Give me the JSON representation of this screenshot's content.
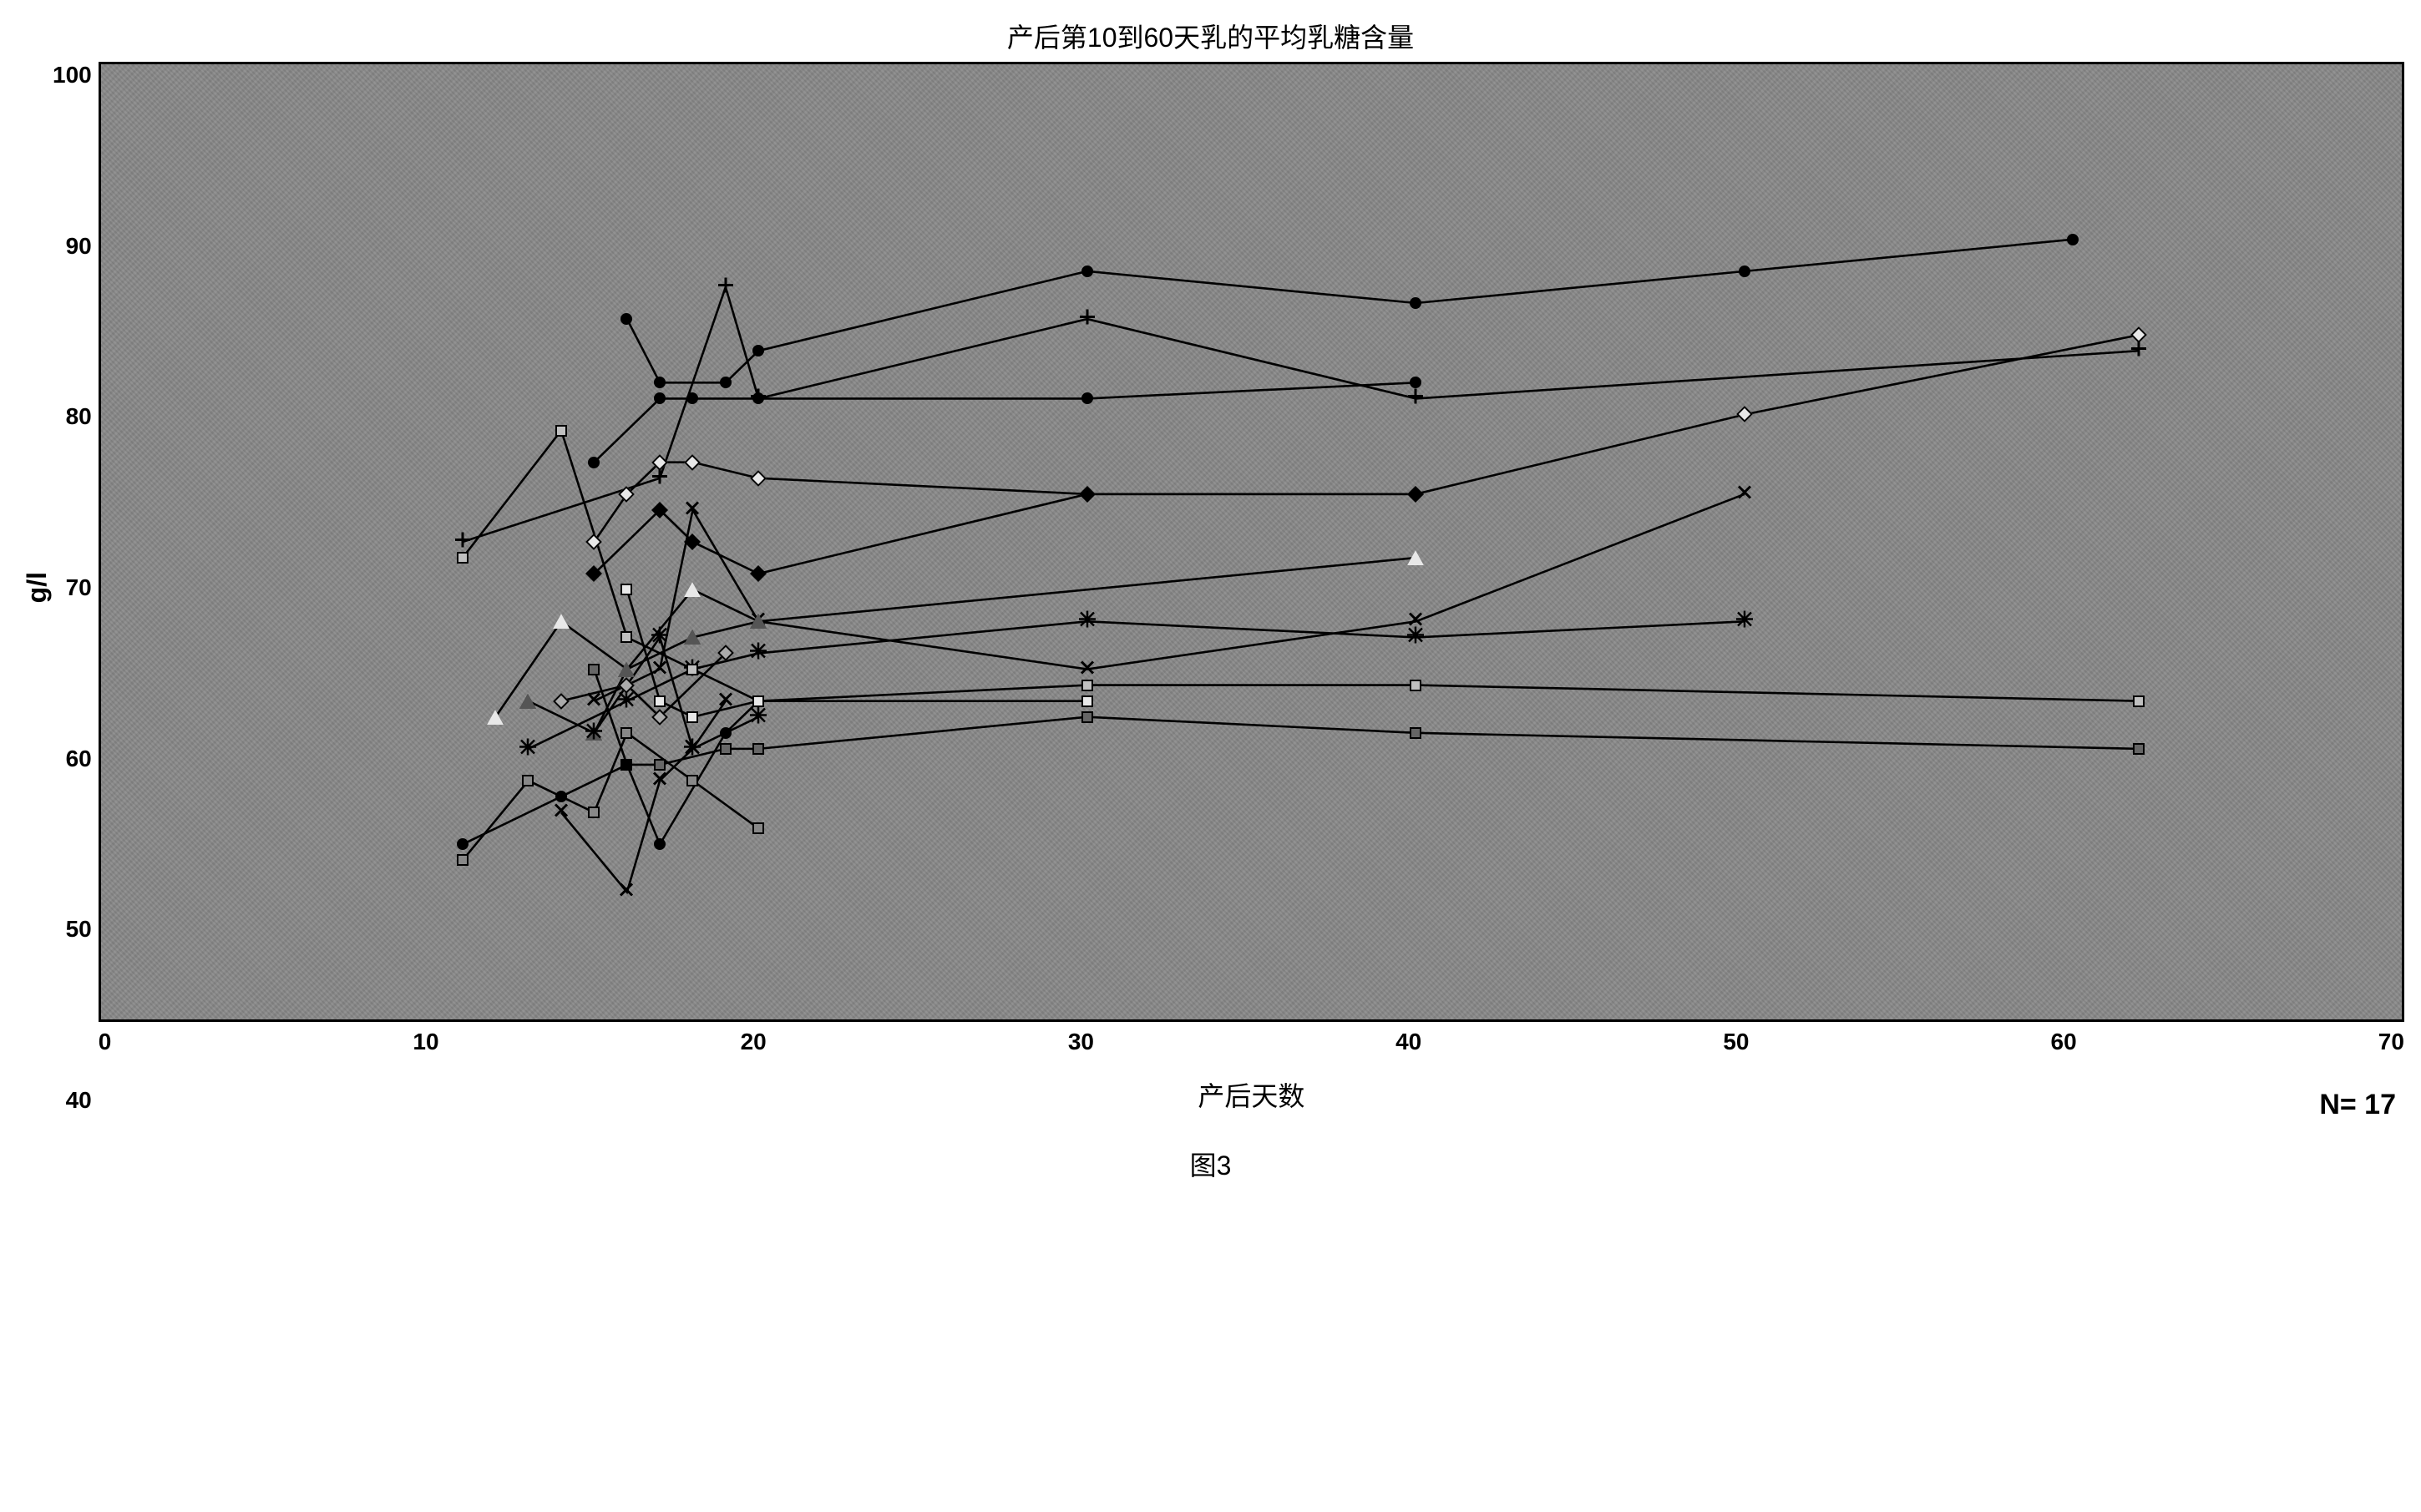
{
  "chart": {
    "type": "line",
    "title": "产后第10到60天乳的平均乳糖含量",
    "ylabel": "g/l",
    "xlabel": "产后天数",
    "n_label": "N= 17",
    "fig_label": "图3",
    "title_fontsize": 32,
    "label_fontsize": 32,
    "tick_fontsize": 28,
    "background_color": "#888888",
    "border_color": "#000000",
    "xlim": [
      0,
      70
    ],
    "ylim": [
      40,
      100
    ],
    "xticks": [
      0,
      10,
      20,
      30,
      40,
      50,
      60,
      70
    ],
    "yticks": [
      40,
      50,
      60,
      70,
      80,
      90,
      100
    ],
    "line_width": 3,
    "marker_size": 14,
    "series": [
      {
        "marker": "circle",
        "fill": "#000000",
        "stroke": "#000000",
        "points": [
          [
            16,
            84
          ],
          [
            17,
            80
          ],
          [
            19,
            80
          ],
          [
            20,
            82
          ],
          [
            30,
            87
          ],
          [
            40,
            85
          ],
          [
            50,
            87
          ],
          [
            60,
            89
          ]
        ]
      },
      {
        "marker": "circle",
        "fill": "#000000",
        "stroke": "#000000",
        "points": [
          [
            15,
            75
          ],
          [
            17,
            79
          ],
          [
            18,
            79
          ],
          [
            20,
            79
          ],
          [
            30,
            79
          ],
          [
            40,
            80
          ]
        ]
      },
      {
        "marker": "diamond",
        "fill": "#e8e8e8",
        "stroke": "#000000",
        "points": [
          [
            15,
            70
          ],
          [
            16,
            73
          ],
          [
            17,
            75
          ],
          [
            18,
            75
          ],
          [
            20,
            74
          ],
          [
            30,
            73
          ],
          [
            40,
            73
          ],
          [
            50,
            78
          ],
          [
            62,
            83
          ]
        ]
      },
      {
        "marker": "plus",
        "fill": "none",
        "stroke": "#000000",
        "points": [
          [
            11,
            70
          ],
          [
            17,
            74
          ],
          [
            19,
            86
          ],
          [
            20,
            79
          ],
          [
            30,
            84
          ],
          [
            40,
            79
          ],
          [
            62,
            82
          ]
        ]
      },
      {
        "marker": "diamond",
        "fill": "#000000",
        "stroke": "#000000",
        "points": [
          [
            15,
            68
          ],
          [
            17,
            72
          ],
          [
            18,
            70
          ],
          [
            20,
            68
          ],
          [
            30,
            73
          ],
          [
            40,
            73
          ]
        ]
      },
      {
        "marker": "x",
        "fill": "none",
        "stroke": "#000000",
        "points": [
          [
            15,
            60
          ],
          [
            17,
            62
          ],
          [
            18,
            72
          ],
          [
            20,
            65
          ],
          [
            30,
            62
          ],
          [
            40,
            65
          ],
          [
            50,
            73
          ]
        ]
      },
      {
        "marker": "triangle",
        "fill": "#e8e8e8",
        "stroke": "#000000",
        "points": [
          [
            12,
            59
          ],
          [
            14,
            65
          ],
          [
            16,
            62
          ],
          [
            18,
            67
          ],
          [
            20,
            65
          ],
          [
            40,
            69
          ]
        ]
      },
      {
        "marker": "asterisk",
        "fill": "none",
        "stroke": "#000000",
        "points": [
          [
            13,
            57
          ],
          [
            16,
            60
          ],
          [
            18,
            62
          ],
          [
            20,
            63
          ],
          [
            30,
            65
          ],
          [
            40,
            64
          ],
          [
            50,
            65
          ]
        ]
      },
      {
        "marker": "square",
        "fill": "#c0c0c0",
        "stroke": "#000000",
        "points": [
          [
            11,
            69
          ],
          [
            14,
            77
          ],
          [
            16,
            64
          ],
          [
            18,
            62
          ],
          [
            20,
            60
          ],
          [
            30,
            61
          ],
          [
            40,
            61
          ],
          [
            62,
            60
          ]
        ]
      },
      {
        "marker": "square",
        "fill": "#666666",
        "stroke": "#000000",
        "points": [
          [
            15,
            62
          ],
          [
            16,
            56
          ],
          [
            17,
            56
          ],
          [
            19,
            57
          ],
          [
            20,
            57
          ],
          [
            30,
            59
          ],
          [
            40,
            58
          ],
          [
            62,
            57
          ]
        ]
      },
      {
        "marker": "circle",
        "fill": "#000000",
        "stroke": "#000000",
        "points": [
          [
            11,
            51
          ],
          [
            14,
            54
          ],
          [
            16,
            56
          ],
          [
            17,
            51
          ],
          [
            19,
            58
          ],
          [
            20,
            60
          ]
        ]
      },
      {
        "marker": "square",
        "fill": "#888888",
        "stroke": "#000000",
        "points": [
          [
            11,
            50
          ],
          [
            13,
            55
          ],
          [
            15,
            53
          ],
          [
            16,
            58
          ],
          [
            18,
            55
          ],
          [
            20,
            52
          ]
        ]
      },
      {
        "marker": "x",
        "fill": "none",
        "stroke": "#000000",
        "points": [
          [
            14,
            53
          ],
          [
            16,
            48
          ],
          [
            17,
            55
          ],
          [
            18,
            57
          ],
          [
            19,
            60
          ]
        ]
      },
      {
        "marker": "triangle",
        "fill": "#555555",
        "stroke": "#000000",
        "points": [
          [
            13,
            60
          ],
          [
            15,
            58
          ],
          [
            16,
            62
          ],
          [
            18,
            64
          ],
          [
            20,
            65
          ]
        ]
      },
      {
        "marker": "square",
        "fill": "#e8e8e8",
        "stroke": "#000000",
        "points": [
          [
            16,
            67
          ],
          [
            17,
            60
          ],
          [
            18,
            59
          ],
          [
            20,
            60
          ],
          [
            30,
            60
          ]
        ]
      },
      {
        "marker": "asterisk",
        "fill": "none",
        "stroke": "#000000",
        "points": [
          [
            15,
            58
          ],
          [
            17,
            64
          ],
          [
            18,
            57
          ],
          [
            20,
            59
          ]
        ]
      },
      {
        "marker": "diamond",
        "fill": "#aaaaaa",
        "stroke": "#000000",
        "points": [
          [
            14,
            60
          ],
          [
            16,
            61
          ],
          [
            17,
            59
          ],
          [
            19,
            63
          ]
        ]
      }
    ]
  }
}
